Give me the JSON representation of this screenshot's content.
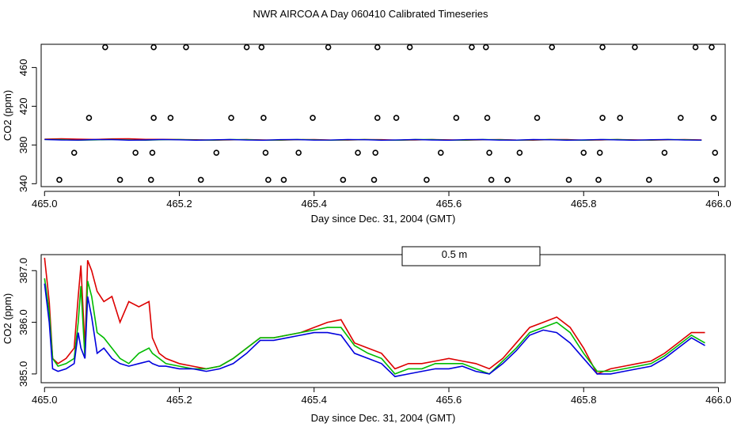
{
  "page_title": "NWR AIRCOA A  Day 060410  Calibrated Timeseries",
  "colors": {
    "red": "#dd0000",
    "green": "#00bb00",
    "blue": "#0000dd",
    "axis": "#000000"
  },
  "chart_data": [
    {
      "type": "scatter",
      "title": "NWR AIRCOA A  Day 060410  Calibrated Timeseries",
      "xlabel": "Day since Dec. 31, 2004 (GMT)",
      "ylabel": "CO2 (ppm)",
      "xlim": [
        464.995,
        466.01
      ],
      "ylim": [
        337.0,
        484.0
      ],
      "xticks": [
        "465.0",
        "465.2",
        "465.4",
        "465.6",
        "465.8",
        "466.0"
      ],
      "xtick_values": [
        465.0,
        465.2,
        465.4,
        465.6,
        465.8,
        466.0
      ],
      "yticks": [
        "340",
        "380",
        "420",
        "460"
      ],
      "ytick_values": [
        340,
        380,
        420,
        460
      ],
      "grid": false,
      "points": {
        "markers": "open circles",
        "y_level_481": [
          465.09,
          465.162,
          465.21,
          465.3,
          465.322,
          465.421,
          465.494,
          465.542,
          465.634,
          465.655,
          465.753,
          465.828,
          465.876,
          465.966,
          465.99
        ],
        "y_level_408": [
          465.066,
          465.162,
          465.187,
          465.277,
          465.325,
          465.398,
          465.494,
          465.522,
          465.611,
          465.657,
          465.731,
          465.828,
          465.854,
          465.944,
          465.993
        ],
        "y_level_372": [
          465.044,
          465.135,
          465.16,
          465.255,
          465.328,
          465.377,
          465.465,
          465.491,
          465.588,
          465.66,
          465.705,
          465.8,
          465.824,
          465.92,
          465.995
        ],
        "y_level_344": [
          465.022,
          465.112,
          465.158,
          465.232,
          465.332,
          465.355,
          465.443,
          465.489,
          465.567,
          465.663,
          465.687,
          465.778,
          465.822,
          465.897,
          465.997
        ]
      },
      "series_lines_value": 385.3
    },
    {
      "type": "line",
      "xlabel": "Day since Dec. 31, 2004 (GMT)",
      "ylabel": "CO2 (ppm)",
      "xlim": [
        464.995,
        466.01
      ],
      "ylim": [
        384.83,
        387.31
      ],
      "xticks": [
        "465.0",
        "465.2",
        "465.4",
        "465.6",
        "465.8",
        "466.0"
      ],
      "xtick_values": [
        465.0,
        465.2,
        465.4,
        465.6,
        465.8,
        466.0
      ],
      "yticks": [
        "385.0",
        "386.0",
        "387.0"
      ],
      "ytick_values": [
        385.0,
        386.0,
        387.0
      ],
      "legend_entry": "0.5 m",
      "legend_position": "top-center",
      "x": [
        465.0,
        465.007,
        465.012,
        465.02,
        465.032,
        465.044,
        465.05,
        465.054,
        465.06,
        465.064,
        465.07,
        465.078,
        465.088,
        465.1,
        465.112,
        465.125,
        465.14,
        465.155,
        465.16,
        465.17,
        465.18,
        465.2,
        465.22,
        465.24,
        465.26,
        465.28,
        465.3,
        465.32,
        465.34,
        465.36,
        465.38,
        465.4,
        465.42,
        465.44,
        465.46,
        465.48,
        465.5,
        465.52,
        465.54,
        465.56,
        465.58,
        465.6,
        465.62,
        465.64,
        465.66,
        465.68,
        465.7,
        465.72,
        465.74,
        465.76,
        465.78,
        465.8,
        465.82,
        465.84,
        465.86,
        465.88,
        465.9,
        465.92,
        465.94,
        465.96,
        465.98
      ],
      "series": [
        {
          "name": "red",
          "color": "#dd0000",
          "values": [
            387.25,
            386.4,
            385.3,
            385.2,
            385.3,
            385.5,
            386.5,
            387.1,
            385.5,
            387.2,
            387.0,
            386.6,
            386.4,
            386.5,
            386.0,
            386.4,
            386.3,
            386.4,
            385.7,
            385.4,
            385.3,
            385.2,
            385.15,
            385.1,
            385.15,
            385.3,
            385.5,
            385.7,
            385.7,
            385.75,
            385.8,
            385.9,
            386.0,
            386.05,
            385.6,
            385.5,
            385.4,
            385.1,
            385.2,
            385.2,
            385.25,
            385.3,
            385.25,
            385.2,
            385.1,
            385.3,
            385.6,
            385.9,
            386.0,
            386.1,
            385.9,
            385.5,
            385.0,
            385.1,
            385.15,
            385.2,
            385.25,
            385.4,
            385.6,
            385.8,
            385.8
          ]
        },
        {
          "name": "green",
          "color": "#00bb00",
          "values": [
            386.85,
            386.2,
            385.3,
            385.15,
            385.2,
            385.3,
            386.0,
            386.7,
            385.3,
            386.8,
            386.5,
            385.8,
            385.7,
            385.5,
            385.3,
            385.2,
            385.4,
            385.5,
            385.4,
            385.3,
            385.2,
            385.15,
            385.1,
            385.1,
            385.15,
            385.3,
            385.5,
            385.7,
            385.7,
            385.75,
            385.8,
            385.85,
            385.9,
            385.9,
            385.55,
            385.4,
            385.3,
            385.0,
            385.1,
            385.1,
            385.2,
            385.2,
            385.2,
            385.1,
            385.0,
            385.25,
            385.5,
            385.8,
            385.9,
            386.0,
            385.8,
            385.4,
            385.05,
            385.05,
            385.1,
            385.15,
            385.2,
            385.35,
            385.55,
            385.75,
            385.6
          ]
        },
        {
          "name": "blue",
          "color": "#0000dd",
          "values": [
            386.75,
            386.0,
            385.1,
            385.05,
            385.1,
            385.2,
            385.8,
            385.5,
            385.3,
            386.5,
            386.1,
            385.4,
            385.5,
            385.3,
            385.2,
            385.15,
            385.2,
            385.25,
            385.2,
            385.15,
            385.15,
            385.1,
            385.1,
            385.05,
            385.1,
            385.2,
            385.4,
            385.65,
            385.65,
            385.7,
            385.75,
            385.8,
            385.8,
            385.75,
            385.4,
            385.3,
            385.2,
            384.95,
            385.0,
            385.05,
            385.1,
            385.1,
            385.15,
            385.05,
            385.0,
            385.2,
            385.45,
            385.75,
            385.85,
            385.8,
            385.6,
            385.3,
            385.0,
            385.0,
            385.05,
            385.1,
            385.15,
            385.3,
            385.5,
            385.7,
            385.55
          ]
        }
      ]
    }
  ]
}
